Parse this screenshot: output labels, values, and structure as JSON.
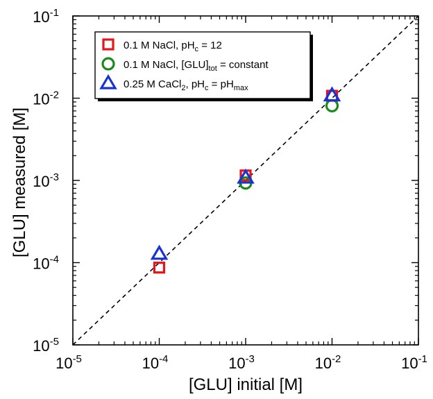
{
  "chart_data": {
    "type": "scatter",
    "xlabel": "[GLU] initial [M]",
    "ylabel": "[GLU] measured [M]",
    "xscale": "log",
    "yscale": "log",
    "xlim": [
      1e-05,
      0.1
    ],
    "ylim": [
      1e-05,
      0.1
    ],
    "ticks": [
      {
        "value": 1e-05,
        "base": "10",
        "exp": "-5"
      },
      {
        "value": 0.0001,
        "base": "10",
        "exp": "-4"
      },
      {
        "value": 0.001,
        "base": "10",
        "exp": "-3"
      },
      {
        "value": 0.01,
        "base": "10",
        "exp": "-2"
      },
      {
        "value": 0.1,
        "base": "10",
        "exp": "-1"
      }
    ],
    "grid": false,
    "legend_position": "top-left",
    "reference_line": {
      "style": "dashed",
      "from": [
        1e-05,
        1e-05
      ],
      "to": [
        0.1,
        0.1
      ]
    },
    "series": [
      {
        "marker": "square",
        "color": "#e8141b",
        "label_parts": [
          {
            "t": "0.1 M NaCl, pH"
          },
          {
            "t": "c",
            "sub": true
          },
          {
            "t": " = 12"
          }
        ],
        "points": [
          [
            0.0001,
            8.7e-05
          ],
          [
            0.001,
            0.00115
          ],
          [
            0.01,
            0.0107
          ]
        ]
      },
      {
        "marker": "circle",
        "color": "#1a8a1a",
        "label_parts": [
          {
            "t": "0.1 M NaCl, [GLU]"
          },
          {
            "t": "tot",
            "sub": true
          },
          {
            "t": " = constant"
          }
        ],
        "points": [
          [
            0.001,
            0.00093
          ],
          [
            0.01,
            0.0081
          ]
        ]
      },
      {
        "marker": "triangle",
        "color": "#1733d6",
        "label_parts": [
          {
            "t": "0.25 M CaCl"
          },
          {
            "t": "2",
            "sub": true
          },
          {
            "t": ", pH"
          },
          {
            "t": "c",
            "sub": true
          },
          {
            "t": " = pH"
          },
          {
            "t": "max",
            "sub": true
          }
        ],
        "points": [
          [
            0.0001,
            0.000128
          ],
          [
            0.001,
            0.00108
          ],
          [
            0.01,
            0.0108
          ]
        ]
      }
    ]
  }
}
